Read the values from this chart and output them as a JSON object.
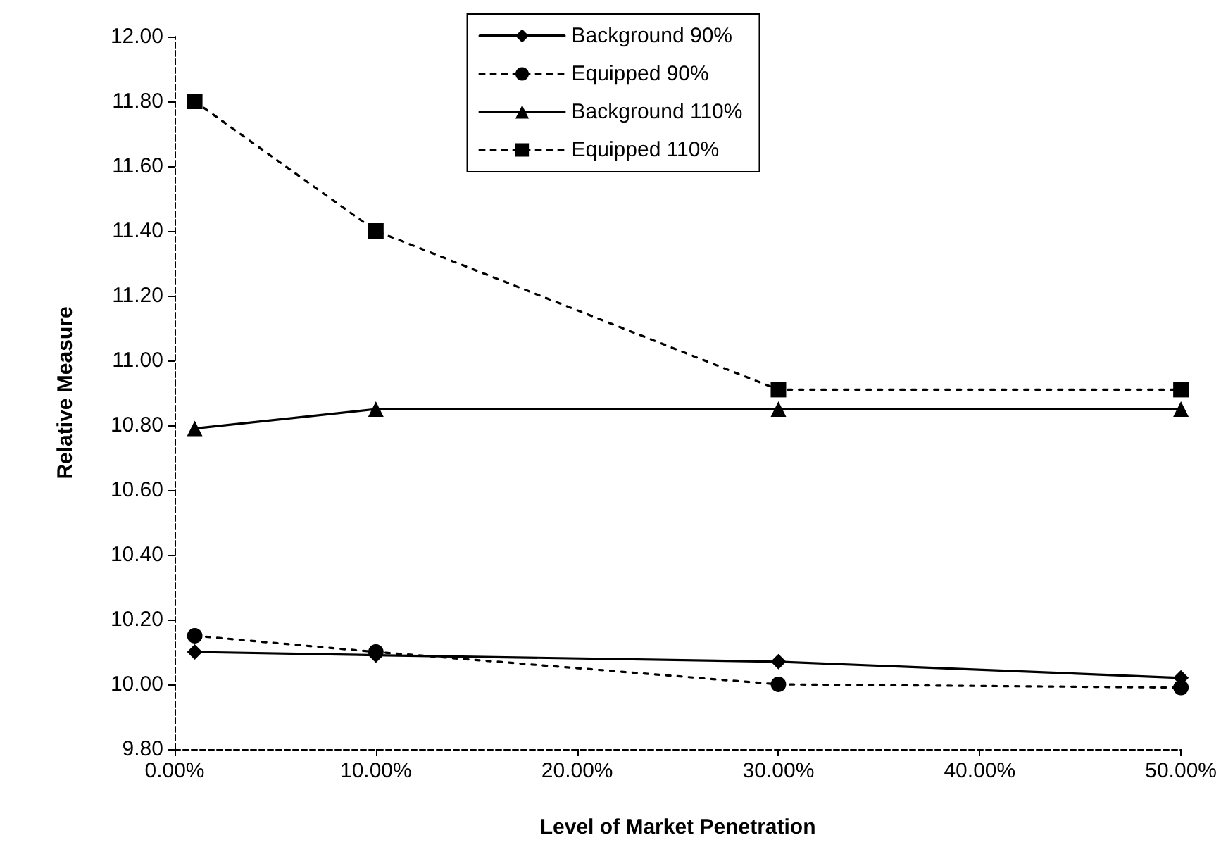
{
  "chart_data": {
    "type": "line",
    "xlabel": "Level of Market Penetration",
    "ylabel": "Relative Measure",
    "x": [
      1,
      10,
      30,
      50
    ],
    "series": [
      {
        "name": "Background 90%",
        "color": "#000000",
        "marker": "diamond",
        "line_style": "solid",
        "values": [
          10.1,
          10.09,
          10.07,
          10.02
        ]
      },
      {
        "name": "Equipped 90%",
        "color": "#000000",
        "marker": "circle",
        "line_style": "dotted",
        "values": [
          10.15,
          10.1,
          10.0,
          9.99
        ]
      },
      {
        "name": "Background 110%",
        "color": "#000000",
        "marker": "triangle",
        "line_style": "solid",
        "values": [
          10.79,
          10.85,
          10.85,
          10.85
        ]
      },
      {
        "name": "Equipped 110%",
        "color": "#000000",
        "marker": "square",
        "line_style": "dotted",
        "values": [
          11.8,
          11.4,
          10.91,
          10.91
        ]
      }
    ],
    "xlim": [
      0,
      50
    ],
    "xticks": [
      {
        "value": 0,
        "label": "0.00%"
      },
      {
        "value": 10,
        "label": "10.00%"
      },
      {
        "value": 20,
        "label": "20.00%"
      },
      {
        "value": 30,
        "label": "30.00%"
      },
      {
        "value": 40,
        "label": "40.00%"
      },
      {
        "value": 50,
        "label": "50.00%"
      }
    ],
    "ylim": [
      9.8,
      12
    ],
    "yticks": [
      {
        "value": 9.8,
        "label": "9.80"
      },
      {
        "value": 10,
        "label": "10.00"
      },
      {
        "value": 10.2,
        "label": "10.20"
      },
      {
        "value": 10.4,
        "label": "10.40"
      },
      {
        "value": 10.6,
        "label": "10.60"
      },
      {
        "value": 10.8,
        "label": "10.80"
      },
      {
        "value": 11,
        "label": "11.00"
      },
      {
        "value": 11.2,
        "label": "11.20"
      },
      {
        "value": 11.4,
        "label": "11.40"
      },
      {
        "value": 11.6,
        "label": "11.60"
      },
      {
        "value": 11.8,
        "label": "11.80"
      },
      {
        "value": 12,
        "label": "12.00"
      }
    ],
    "grid": false,
    "legend": "top"
  }
}
